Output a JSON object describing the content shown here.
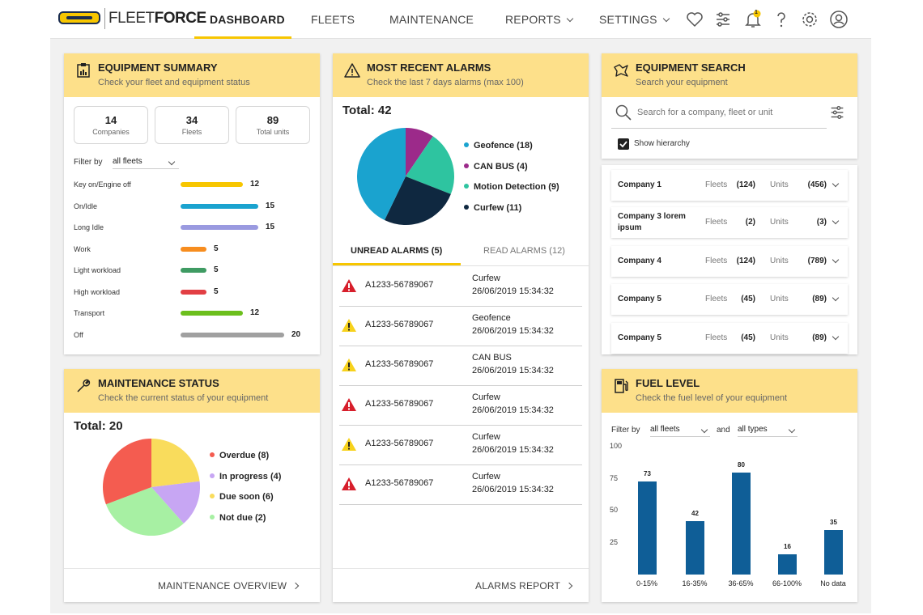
{
  "app": {
    "logo_main": "FLEET",
    "logo_bold": "FORCE",
    "badge": "1"
  },
  "nav": {
    "dashboard": "DASHBOARD",
    "fleets": "FLEETS",
    "maintenance": "MAINTENANCE",
    "reports": "REPORTS",
    "settings": "SETTINGS"
  },
  "equipment_summary": {
    "title": "EQUIPMENT SUMMARY",
    "subtitle": "Check your fleet and equipment status",
    "stats": [
      {
        "value": "14",
        "label": "Companies"
      },
      {
        "value": "34",
        "label": "Fleets"
      },
      {
        "value": "89",
        "label": "Total units"
      }
    ],
    "filter_label": "Filter by",
    "filter_value": "all fleets",
    "rows": [
      {
        "label": "Key on/Engine off",
        "value": 12,
        "color": "#f7c600"
      },
      {
        "label": "On/Idle",
        "value": 15,
        "color": "#1ba3cf"
      },
      {
        "label": "Long Idle",
        "value": 15,
        "color": "#9a9ae0"
      },
      {
        "label": "Work",
        "value": 5,
        "color": "#f78d1f"
      },
      {
        "label": "Light workload",
        "value": 5,
        "color": "#3f9b63"
      },
      {
        "label": "High workload",
        "value": 5,
        "color": "#e23f44"
      },
      {
        "label": "Transport",
        "value": 12,
        "color": "#6cbf1d"
      },
      {
        "label": "Off",
        "value": 20,
        "color": "#a0a0a0"
      }
    ]
  },
  "alarms": {
    "title": "MOST RECENT ALARMS",
    "subtitle": "Check the last 7 days alarms (max 100)",
    "total_label": "Total: 42",
    "legend": [
      {
        "label": "Geofence (18)",
        "value": 18,
        "color": "#1aa3cf"
      },
      {
        "label": "CAN BUS (4)",
        "value": 4,
        "color": "#9c2a8a"
      },
      {
        "label": "Motion Detection (9)",
        "value": 9,
        "color": "#2ec4a0"
      },
      {
        "label": "Curfew (11)",
        "value": 11,
        "color": "#0f2840"
      }
    ],
    "tab_unread": "UNREAD ALARMS (5)",
    "tab_read": "READ ALARMS (12)",
    "rows": [
      {
        "id": "A1233-56789067",
        "type": "Curfew",
        "date": "26/06/2019 15:34:32",
        "severity": "red"
      },
      {
        "id": "A1233-56789067",
        "type": "Geofence",
        "date": "26/06/2019 15:34:32",
        "severity": "yellow"
      },
      {
        "id": "A1233-56789067",
        "type": "CAN BUS",
        "date": "26/06/2019 15:34:32",
        "severity": "yellow"
      },
      {
        "id": "A1233-56789067",
        "type": "Curfew",
        "date": "26/06/2019 15:34:32",
        "severity": "red"
      },
      {
        "id": "A1233-56789067",
        "type": "Curfew",
        "date": "26/06/2019 15:34:32",
        "severity": "yellow"
      },
      {
        "id": "A1233-56789067",
        "type": "Curfew",
        "date": "26/06/2019 15:34:32",
        "severity": "red"
      }
    ],
    "footer": "ALARMS REPORT"
  },
  "search": {
    "title": "EQUIPMENT SEARCH",
    "subtitle": "Search your equipment",
    "placeholder": "Search for a company, fleet or unit",
    "show_hierarchy": "Show hierarchy",
    "fleets_label": "Fleets",
    "units_label": "Units",
    "companies": [
      {
        "name": "Company 1",
        "fleets": "(124)",
        "units": "(456)"
      },
      {
        "name": "Company 3 lorem ipsum",
        "fleets": "(2)",
        "units": "(3)"
      },
      {
        "name": "Company 4",
        "fleets": "(124)",
        "units": "(789)"
      },
      {
        "name": "Company 5",
        "fleets": "(45)",
        "units": "(89)"
      },
      {
        "name": "Company 5",
        "fleets": "(45)",
        "units": "(89)"
      }
    ]
  },
  "maintenance": {
    "title": "MAINTENANCE STATUS",
    "subtitle": "Check the current status of your equipment",
    "total_label": "Total: 20",
    "legend": [
      {
        "label": "Overdue (8)",
        "value": 8,
        "color": "#f45c50"
      },
      {
        "label": "In progress (4)",
        "value": 4,
        "color": "#c7a6f3"
      },
      {
        "label": "Due soon (6)",
        "value": 6,
        "color": "#f9dc5c"
      },
      {
        "label": "Not due (2)",
        "value": 2,
        "color": "#a7f0a3"
      }
    ],
    "footer": "MAINTENANCE OVERVIEW"
  },
  "fuel": {
    "title": "FUEL LEVEL",
    "subtitle": "Check the fuel level of your equipment",
    "filter_label": "Filter by",
    "filter_value": "all fleets",
    "and_label": "and",
    "type_value": "all types",
    "chart_data": {
      "type": "bar",
      "categories": [
        "0-15%",
        "16-35%",
        "36-65%",
        "66-100%",
        "No data"
      ],
      "values": [
        73,
        42,
        80,
        16,
        35
      ],
      "yticks": [
        100,
        75,
        50,
        25
      ],
      "ylim": [
        0,
        100
      ],
      "color": "#0f5e97"
    }
  }
}
